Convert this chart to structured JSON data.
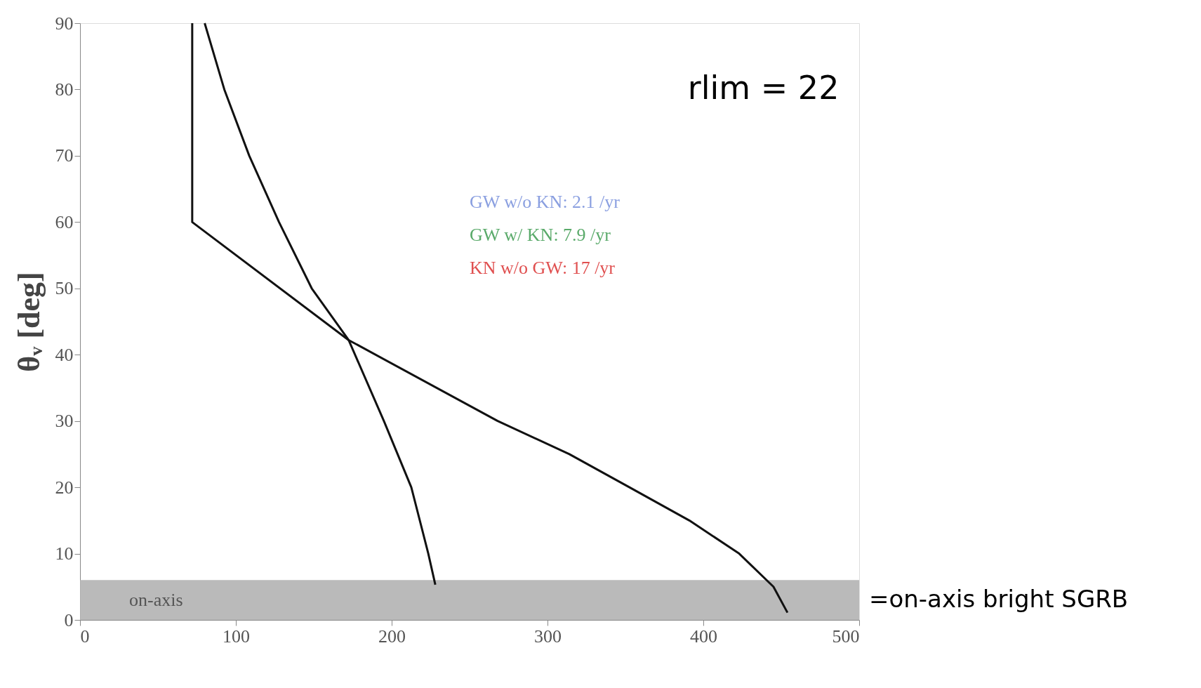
{
  "chart_data": {
    "type": "line",
    "ylabel": "θᵥ [deg]",
    "xlim": [
      0,
      500
    ],
    "xticks": [
      0,
      100,
      200,
      300,
      400,
      500
    ],
    "ylim": [
      0,
      90
    ],
    "yticks": [
      0,
      10,
      20,
      30,
      40,
      50,
      60,
      70,
      80,
      90
    ],
    "grid": false,
    "legend": false,
    "marker": "none",
    "line_style": "solid",
    "series": [
      {
        "color": "#111111",
        "x": [
          80,
          92.6,
          108.6,
          127.7,
          148.7,
          172.4,
          195,
          212.6,
          223.5,
          228
        ],
        "values": [
          90,
          80,
          70,
          60,
          50,
          42.2,
          30,
          20,
          10,
          5.3
        ]
      },
      {
        "color": "#111111",
        "x": [
          72,
          72,
          172.4,
          268,
          314,
          352.6,
          391,
          423,
          445,
          454
        ],
        "values": [
          90,
          60,
          42.2,
          30,
          25,
          20,
          15,
          10,
          5,
          1.1
        ]
      }
    ],
    "bands": [
      {
        "axis": "y",
        "from": 0,
        "to": 6,
        "label": "on-axis",
        "color": "#b3b3b3"
      }
    ],
    "annotations": [
      "rlim = 22",
      "GW w/o KN: 2.1 /yr",
      "GW w/ KN: 7.9 /yr",
      "KN w/o GW: 17 /yr",
      "=on-axis bright SGRB"
    ]
  }
}
